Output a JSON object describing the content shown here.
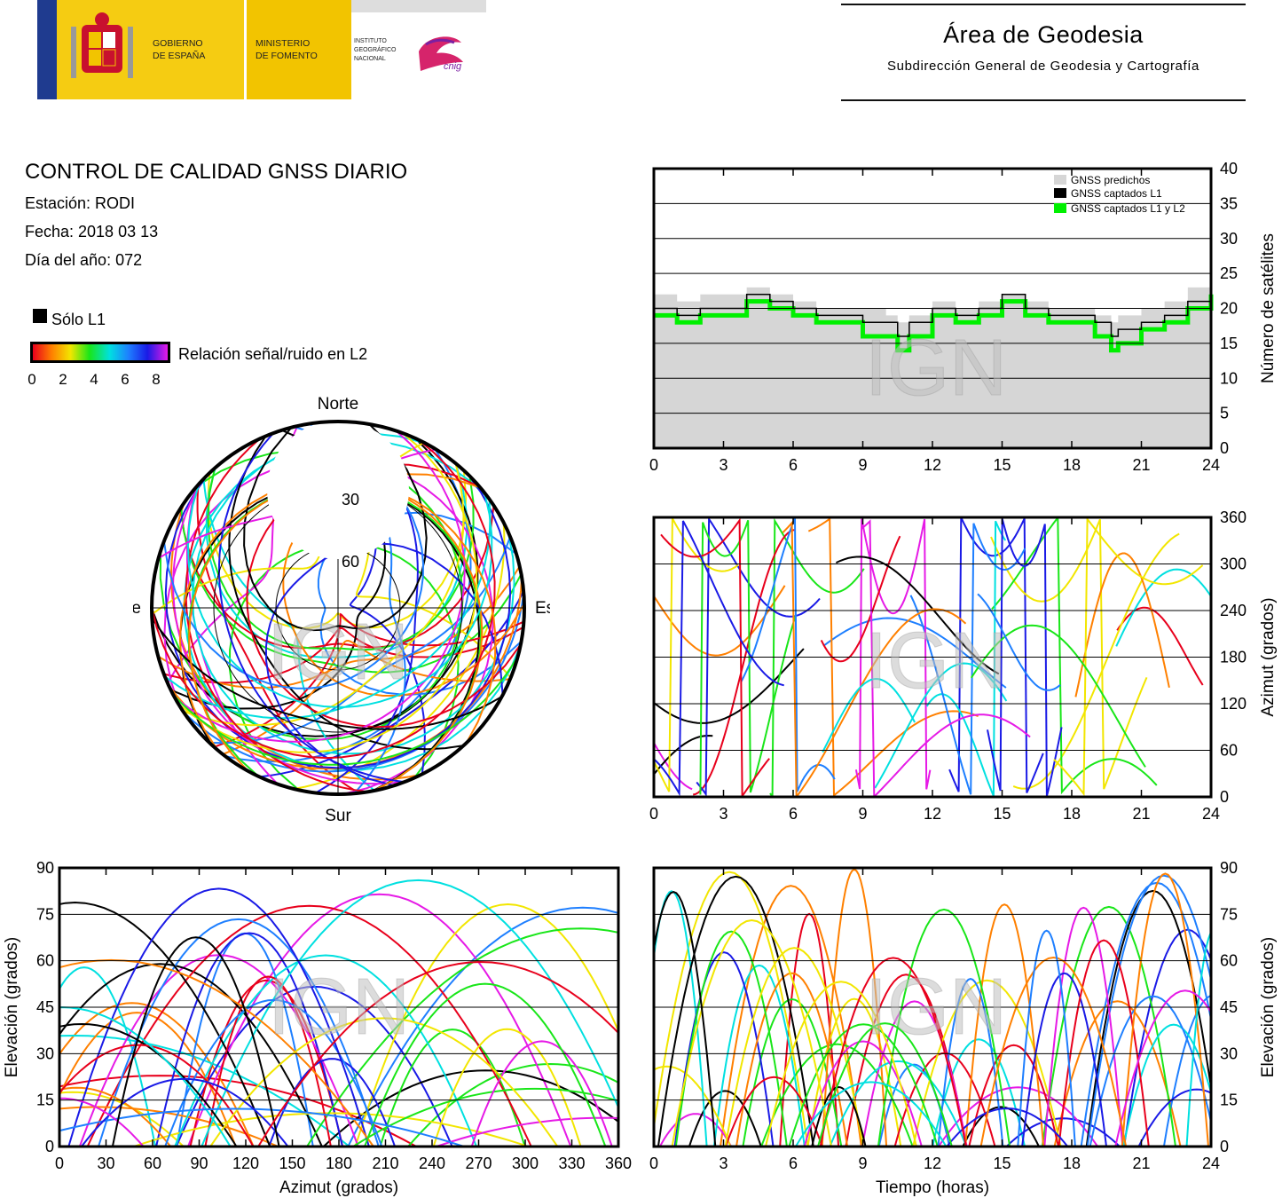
{
  "header": {
    "logos": {
      "gobierno": "GOBIERNO DE ESPAÑA",
      "ministerio": "MINISTERIO DE FOMENTO",
      "instituto": "INSTITUTO GEOGRÁFICO NACIONAL",
      "cnig": "cnig"
    },
    "area_title": "Área de Geodesia",
    "area_subtitle": "Subdirección General de Geodesia y Cartografía"
  },
  "report": {
    "title": "CONTROL DE CALIDAD GNSS DIARIO",
    "station_line": "Estación: RODI",
    "date_line": "Fecha: 2018 03 13",
    "doy_line": "Día del año: 072"
  },
  "legend": {
    "l1_only": "Sólo L1",
    "snr_label": "Relación señal/ruido en L2",
    "snr_ticks": [
      "0",
      "2",
      "4",
      "6",
      "8"
    ],
    "colors": [
      "#e8001c",
      "#ff8000",
      "#f2e600",
      "#19e619",
      "#00e0e0",
      "#1e7fff",
      "#1a1ae6",
      "#e61ae6"
    ]
  },
  "watermark": "IGN",
  "colors": {
    "predicted_fill": "#d6d6d6",
    "l1_black": "#000000",
    "l1l2_green": "#00f000"
  },
  "chart_data": [
    {
      "id": "satellite-count",
      "type": "line",
      "ylabel": "Número de satélites",
      "xlim": [
        0,
        24
      ],
      "ylim": [
        0,
        40
      ],
      "xticks": [
        "0",
        "3",
        "6",
        "9",
        "12",
        "15",
        "18",
        "21",
        "24"
      ],
      "yticks": [
        "0",
        "5",
        "10",
        "15",
        "20",
        "25",
        "30",
        "35",
        "40"
      ],
      "grid": true,
      "legend_position": "top-right",
      "legend": [
        "GNSS predichos",
        "GNSS captados L1",
        "GNSS captados L1 y L2"
      ],
      "x": [
        0,
        1,
        2,
        3,
        4,
        5,
        6,
        7,
        8,
        9,
        10,
        10.5,
        11,
        12,
        13,
        14,
        15,
        16,
        17,
        18,
        19,
        19.7,
        20,
        21,
        22,
        23,
        24
      ],
      "series": [
        {
          "name": "GNSS predichos",
          "values": [
            22,
            21,
            22,
            22,
            23,
            22,
            21,
            20,
            20,
            20,
            19,
            18,
            19,
            21,
            20,
            21,
            22,
            21,
            20,
            20,
            19,
            18,
            19,
            20,
            21,
            23,
            24
          ]
        },
        {
          "name": "GNSS captados L1",
          "values": [
            20,
            19,
            20,
            20,
            22,
            21,
            20,
            19,
            19,
            18,
            18,
            16,
            18,
            20,
            19,
            20,
            22,
            20,
            19,
            19,
            18,
            16,
            17,
            18,
            19,
            21,
            23
          ]
        },
        {
          "name": "GNSS captados L1 y L2",
          "values": [
            19,
            18,
            19,
            19,
            21,
            20,
            19,
            18,
            18,
            16,
            16,
            14,
            16,
            19,
            18,
            19,
            21,
            19,
            18,
            18,
            16,
            14,
            15,
            17,
            18,
            20,
            22
          ]
        }
      ]
    },
    {
      "id": "azimuth-time",
      "type": "scatter",
      "ylabel": "Azimut (grados)",
      "xlim": [
        0,
        24
      ],
      "ylim": [
        0,
        360
      ],
      "xticks": [
        "0",
        "3",
        "6",
        "9",
        "12",
        "15",
        "18",
        "21",
        "24"
      ],
      "yticks": [
        "0",
        "60",
        "120",
        "180",
        "240",
        "300",
        "360"
      ],
      "grid": true
    },
    {
      "id": "elevation-azimuth",
      "type": "scatter",
      "xlabel": "Azimut (grados)",
      "ylabel": "Elevación (grados)",
      "xlim": [
        0,
        360
      ],
      "ylim": [
        0,
        90
      ],
      "xticks": [
        "0",
        "30",
        "60",
        "90",
        "120",
        "150",
        "180",
        "210",
        "240",
        "270",
        "300",
        "330",
        "360"
      ],
      "yticks": [
        "0",
        "15",
        "30",
        "45",
        "60",
        "75",
        "90"
      ],
      "grid": true
    },
    {
      "id": "elevation-time",
      "type": "scatter",
      "xlabel": "Tiempo (horas)",
      "ylabel": "Elevación (grados)",
      "xlim": [
        0,
        24
      ],
      "ylim": [
        0,
        90
      ],
      "xticks": [
        "0",
        "3",
        "6",
        "9",
        "12",
        "15",
        "18",
        "21",
        "24"
      ],
      "yticks": [
        "0",
        "15",
        "30",
        "45",
        "60",
        "75",
        "90"
      ],
      "grid": true
    },
    {
      "id": "skyplot",
      "type": "scatter",
      "directions": {
        "north": "Norte",
        "south": "Sur",
        "east": "Este",
        "west": "Oeste"
      },
      "elevation_rings": [
        "30",
        "60"
      ]
    }
  ]
}
